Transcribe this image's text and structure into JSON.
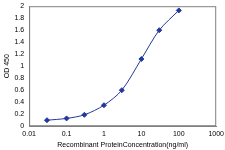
{
  "chart_data": {
    "type": "line",
    "x_label": "Recombinant ProteinConcentration(ng/ml)",
    "y_label": "OD 450",
    "x": [
      0.03,
      0.1,
      0.3,
      1,
      3,
      10,
      30,
      100
    ],
    "values": [
      0.1,
      0.13,
      0.19,
      0.35,
      0.6,
      1.12,
      1.6,
      1.93
    ],
    "color": "#24389a",
    "marker": "diamond",
    "log": "x",
    "xlim": [
      0.01,
      1000
    ],
    "xticks": [
      0.01,
      0.1,
      1,
      10,
      100,
      1000
    ],
    "ylim": [
      0,
      2
    ],
    "yticks": [
      0,
      0.2,
      0.4,
      0.6,
      0.8,
      1,
      1.2,
      1.4,
      1.6,
      1.8,
      2
    ],
    "grid": false
  }
}
